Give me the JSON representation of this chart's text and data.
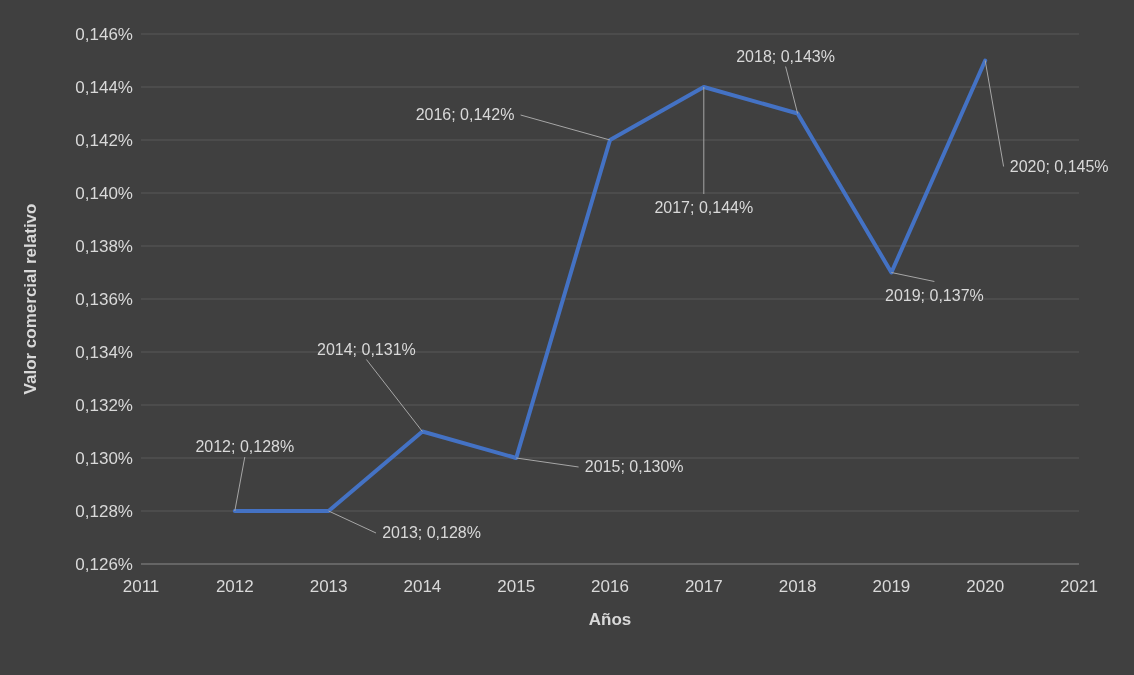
{
  "chart_data": {
    "type": "line",
    "xlabel": "Años",
    "ylabel": "Valor comercial relativo",
    "x": [
      2012,
      2013,
      2014,
      2015,
      2016,
      2017,
      2018,
      2019,
      2020
    ],
    "series": [
      {
        "color": "#4472c4",
        "values": [
          0.128,
          0.128,
          0.131,
          0.13,
          0.142,
          0.144,
          0.143,
          0.137,
          0.145
        ],
        "value_labels": [
          "2012; 0,128%",
          "2013; 0,128%",
          "2014; 0,131%",
          "2015; 0,130%",
          "2016; 0,142%",
          "2017; 0,144%",
          "2018; 0,143%",
          "2019; 0,137%",
          "2020; 0,145%"
        ]
      }
    ],
    "xlim": [
      2011,
      2021
    ],
    "xticks": [
      2011,
      2012,
      2013,
      2014,
      2015,
      2016,
      2017,
      2018,
      2019,
      2020,
      2021
    ],
    "ylim": [
      0.126,
      0.146
    ],
    "yticks": [
      {
        "value": 0.126,
        "label": "0,126%"
      },
      {
        "value": 0.128,
        "label": "0,128%"
      },
      {
        "value": 0.13,
        "label": "0,130%"
      },
      {
        "value": 0.132,
        "label": "0,132%"
      },
      {
        "value": 0.134,
        "label": "0,134%"
      },
      {
        "value": 0.136,
        "label": "0,136%"
      },
      {
        "value": 0.138,
        "label": "0,138%"
      },
      {
        "value": 0.14,
        "label": "0,140%"
      },
      {
        "value": 0.142,
        "label": "0,142%"
      },
      {
        "value": 0.144,
        "label": "0,144%"
      },
      {
        "value": 0.146,
        "label": "0,146%"
      }
    ],
    "grid": "y",
    "marker": "none",
    "line_style": "solid",
    "legend": false
  }
}
